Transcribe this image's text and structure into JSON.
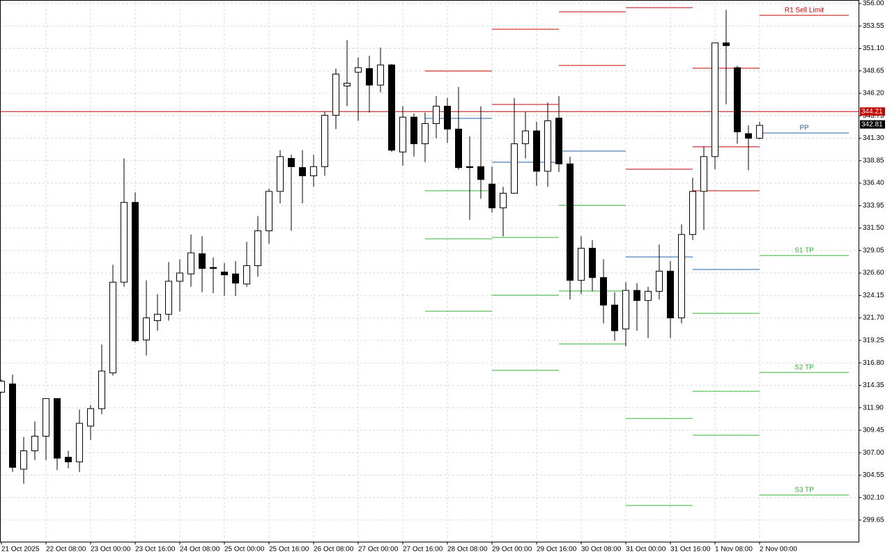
{
  "chart_data": {
    "type": "candlestick",
    "categories": [
      "21 Oct 2025",
      null,
      null,
      null,
      "22 Oct 08:00",
      null,
      null,
      null,
      "23 Oct 00:00",
      null,
      null,
      null,
      "23 Oct 16:00",
      null,
      null,
      null,
      "24 Oct 08:00",
      null,
      null,
      null,
      "25 Oct 00:00",
      null,
      null,
      null,
      "25 Oct 16:00",
      null,
      null,
      null,
      "26 Oct 08:00",
      null,
      null,
      null,
      "27 Oct 00:00",
      null,
      null,
      null,
      "27 Oct 16:00",
      null,
      null,
      null,
      "28 Oct 08:00",
      null,
      null,
      null,
      "29 Oct 00:00",
      null,
      null,
      null,
      "29 Oct 16:00",
      null,
      null,
      null,
      "30 Oct 08:00",
      null,
      null,
      null,
      "31 Oct 00:00",
      null,
      null,
      null,
      "31 Oct 16:00",
      null,
      null,
      null,
      "1 Nov 08:00",
      null,
      null,
      null,
      "2 Nov 00:00"
    ],
    "open": [
      313.6,
      314.5,
      305.2,
      307.2,
      308.8,
      312.9,
      306.5,
      306.0,
      309.9,
      311.8,
      315.7,
      325.6,
      334.3,
      319.3,
      321.4,
      322.1,
      325.7,
      326.5,
      328.7,
      327.2,
      326.7,
      326.5,
      325.4,
      327.4,
      331.2,
      335.5,
      339.1,
      338.1,
      337.2,
      338.2,
      343.8,
      347.0,
      348.5,
      348.9,
      347.1,
      349.3,
      339.8,
      343.6,
      340.7,
      342.9,
      344.8,
      342.3,
      338.2,
      338.2,
      336.3,
      333.7,
      335.3,
      340.7,
      342.1,
      337.7,
      343.5,
      338.5,
      325.8,
      329.3,
      326.1,
      323.1,
      320.5,
      324.7,
      323.6,
      324.6,
      326.8,
      321.7,
      330.8,
      335.5,
      339.3,
      351.7,
      349.0,
      341.8,
      341.3
    ],
    "high": [
      315.0,
      315.5,
      308.7,
      310.4,
      312.9,
      312.9,
      307.2,
      311.7,
      312.2,
      318.8,
      327.5,
      339.1,
      335.4,
      325.8,
      324.3,
      327.8,
      328.1,
      330.8,
      330.6,
      328.3,
      327.7,
      327.9,
      330.0,
      332.8,
      335.8,
      340.0,
      339.5,
      340.0,
      339.5,
      344.2,
      348.9,
      352.0,
      350.1,
      350.3,
      351.2,
      349.4,
      344.8,
      344.0,
      344.1,
      345.9,
      345.7,
      346.9,
      341.5,
      344.8,
      338.2,
      336.0,
      345.7,
      344.2,
      343.1,
      345.2,
      345.9,
      339.3,
      330.6,
      330.2,
      328.1,
      324.5,
      325.6,
      325.5,
      325.1,
      329.7,
      327.9,
      331.9,
      337.0,
      340.4,
      351.7,
      355.3,
      349.2,
      342.7,
      343.1
    ],
    "low": [
      313.5,
      304.9,
      303.6,
      306.2,
      306.2,
      305.1,
      305.3,
      304.9,
      308.4,
      311.2,
      315.4,
      325.1,
      319.0,
      317.6,
      320.3,
      321.4,
      322.4,
      325.1,
      324.5,
      324.4,
      324.1,
      324.1,
      325.1,
      326.2,
      329.8,
      334.2,
      331.2,
      334.2,
      336.0,
      337.2,
      342.3,
      344.8,
      343.2,
      344.1,
      346.3,
      339.8,
      338.3,
      339.3,
      338.7,
      341.3,
      340.8,
      337.9,
      332.4,
      334.7,
      333.2,
      330.6,
      335.3,
      339.1,
      336.1,
      336.0,
      337.6,
      323.7,
      324.3,
      324.6,
      321.1,
      319.2,
      318.6,
      320.3,
      319.5,
      323.7,
      319.5,
      321.1,
      330.2,
      331.3,
      337.9,
      345.0,
      340.7,
      337.8,
      341.2
    ],
    "close": [
      314.8,
      305.4,
      307.2,
      308.8,
      312.9,
      306.4,
      306.0,
      310.2,
      311.8,
      315.9,
      325.6,
      334.3,
      319.2,
      321.7,
      322.1,
      325.7,
      326.6,
      328.8,
      327.1,
      327.1,
      326.4,
      325.5,
      327.4,
      331.2,
      335.5,
      339.3,
      338.2,
      337.2,
      338.2,
      343.8,
      348.3,
      347.3,
      349.0,
      347.1,
      349.3,
      340.0,
      343.6,
      340.7,
      342.9,
      344.8,
      342.3,
      338.1,
      338.1,
      336.8,
      333.7,
      335.3,
      340.7,
      342.1,
      337.7,
      343.2,
      338.5,
      325.8,
      329.3,
      326.1,
      323.1,
      320.3,
      324.7,
      323.6,
      324.6,
      326.8,
      321.7,
      330.8,
      335.5,
      339.3,
      351.7,
      351.4,
      342.0,
      341.3,
      342.7
    ],
    "up_color": "#ffffff",
    "down_color": "#000000",
    "candle_stroke": "#000000",
    "ylim": [
      297.29,
      356.38
    ],
    "yticks": [
      {
        "value": 356.0,
        "label": "356.00"
      },
      {
        "value": 353.55,
        "label": "353.55"
      },
      {
        "value": 351.1,
        "label": "351.10"
      },
      {
        "value": 348.65,
        "label": "348.65"
      },
      {
        "value": 346.2,
        "label": "346.20"
      },
      {
        "value": 343.75,
        "label": "343.75"
      },
      {
        "value": 341.3,
        "label": "341.30"
      },
      {
        "value": 338.85,
        "label": "338.85"
      },
      {
        "value": 336.4,
        "label": "336.40"
      },
      {
        "value": 333.95,
        "label": "333.95"
      },
      {
        "value": 331.5,
        "label": "331.50"
      },
      {
        "value": 329.05,
        "label": "329.05"
      },
      {
        "value": 326.6,
        "label": "326.60"
      },
      {
        "value": 324.15,
        "label": "324.15"
      },
      {
        "value": 321.7,
        "label": "321.70"
      },
      {
        "value": 319.25,
        "label": "319.25"
      },
      {
        "value": 316.8,
        "label": "316.80"
      },
      {
        "value": 314.35,
        "label": "314.35"
      },
      {
        "value": 311.9,
        "label": "311.90"
      },
      {
        "value": 309.45,
        "label": "309.45"
      },
      {
        "value": 307.0,
        "label": "307.00"
      },
      {
        "value": 304.55,
        "label": "304.55"
      },
      {
        "value": 302.1,
        "label": "302.10"
      },
      {
        "value": 299.65,
        "label": "299.65"
      }
    ],
    "grid": true,
    "hline": {
      "value": 344.21,
      "color": "#c00000"
    },
    "current_price": {
      "value": 342.81,
      "color": "#000000"
    },
    "pivot_levels": [
      {
        "start": 38,
        "end": 44,
        "levels": [
          {
            "value": 348.63,
            "color": "#c00000"
          },
          {
            "value": 343.47,
            "color": "#1f5fa8"
          },
          {
            "value": 335.57,
            "color": "#33b233"
          },
          {
            "value": 330.33,
            "color": "#33b233"
          },
          {
            "value": 322.43,
            "color": "#33b233"
          }
        ]
      },
      {
        "start": 44,
        "end": 50,
        "levels": [
          {
            "value": 353.19,
            "color": "#c00000"
          },
          {
            "value": 344.99,
            "color": "#c00000"
          },
          {
            "value": 338.68,
            "color": "#1f5fa8"
          },
          {
            "value": 330.48,
            "color": "#33b233"
          },
          {
            "value": 324.18,
            "color": "#33b233"
          },
          {
            "value": 315.98,
            "color": "#33b233"
          }
        ]
      },
      {
        "start": 50,
        "end": 56,
        "levels": [
          {
            "value": 355.09,
            "color": "#c00000"
          },
          {
            "value": 349.24,
            "color": "#c00000"
          },
          {
            "value": 339.9,
            "color": "#1f5fa8"
          },
          {
            "value": 333.98,
            "color": "#33b233"
          },
          {
            "value": 324.63,
            "color": "#33b233"
          },
          {
            "value": 318.86,
            "color": "#33b233"
          }
        ]
      },
      {
        "start": 56,
        "end": 62,
        "levels": [
          {
            "value": 355.54,
            "color": "#c00000"
          },
          {
            "value": 337.92,
            "color": "#c00000"
          },
          {
            "value": 328.35,
            "color": "#1f5fa8"
          },
          {
            "value": 310.73,
            "color": "#33b233"
          },
          {
            "value": 301.24,
            "color": "#33b233"
          }
        ]
      },
      {
        "start": 62,
        "end": 68,
        "levels": [
          {
            "value": 348.94,
            "color": "#c00000"
          },
          {
            "value": 340.36,
            "color": "#c00000"
          },
          {
            "value": 335.57,
            "color": "#c00000"
          },
          {
            "value": 326.99,
            "color": "#1f5fa8"
          },
          {
            "value": 322.2,
            "color": "#33b233"
          },
          {
            "value": 313.7,
            "color": "#33b233"
          },
          {
            "value": 308.91,
            "color": "#33b233"
          }
        ]
      },
      {
        "start": 68,
        "end": 76,
        "levels": [
          {
            "name": "R1 Sell Limit",
            "value": 354.71,
            "color": "#c00000"
          },
          {
            "name": "PP",
            "value": 341.87,
            "color": "#1f5fa8"
          },
          {
            "name": "S1 TP",
            "value": 328.51,
            "color": "#33b233"
          },
          {
            "name": "S2 TP",
            "value": 315.75,
            "color": "#33b233"
          },
          {
            "name": "S3 TP",
            "value": 302.38,
            "color": "#33b233"
          }
        ]
      }
    ]
  }
}
